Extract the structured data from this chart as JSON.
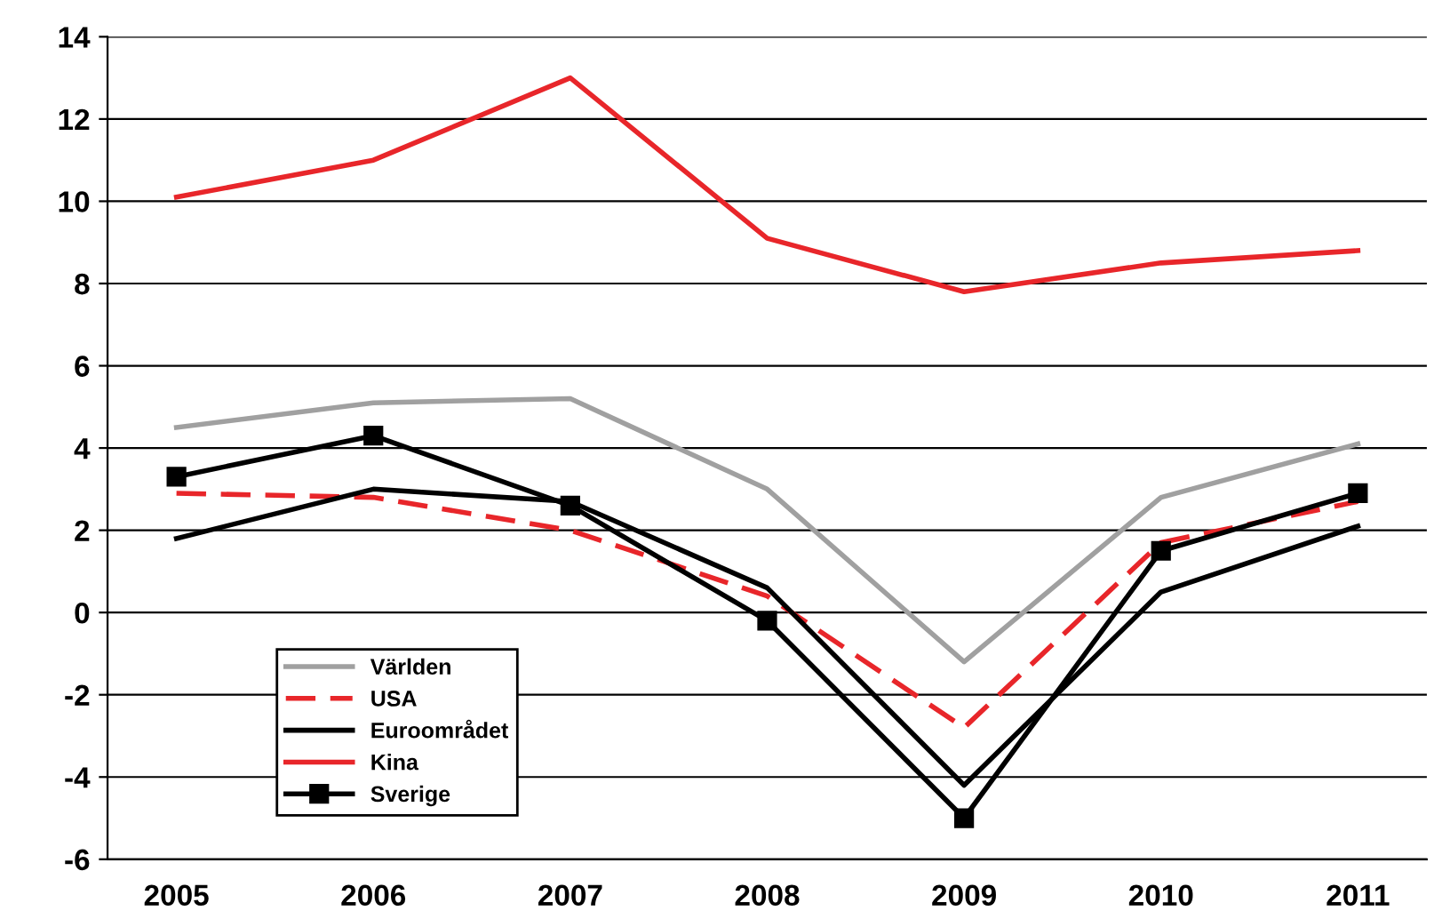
{
  "chart_data": {
    "type": "line",
    "categories": [
      "2005",
      "2006",
      "2007",
      "2008",
      "2009",
      "2010",
      "2011"
    ],
    "series": [
      {
        "name": "Världen",
        "color": "#a0a0a0",
        "line_style": "solid",
        "marker": "none",
        "values": [
          4.5,
          5.1,
          5.2,
          3.0,
          -1.2,
          2.8,
          4.1
        ]
      },
      {
        "name": "USA",
        "color": "#e8262a",
        "line_style": "dashed",
        "marker": "none",
        "values": [
          2.9,
          2.8,
          2.0,
          0.4,
          -2.8,
          1.7,
          2.7
        ]
      },
      {
        "name": "Euroområdet",
        "color": "#000000",
        "line_style": "solid",
        "marker": "none",
        "values": [
          1.8,
          3.0,
          2.7,
          0.6,
          -4.2,
          0.5,
          2.1
        ]
      },
      {
        "name": "Kina",
        "color": "#e8262a",
        "line_style": "solid",
        "marker": "none",
        "values": [
          10.1,
          11.0,
          13.0,
          9.1,
          7.8,
          8.5,
          8.8
        ]
      },
      {
        "name": "Sverige",
        "color": "#000000",
        "line_style": "solid",
        "marker": "square",
        "values": [
          3.3,
          4.3,
          2.6,
          -0.2,
          -5.0,
          1.5,
          2.9
        ]
      }
    ],
    "ylim": [
      -6,
      14
    ],
    "yticks": [
      -6,
      -4,
      -2,
      0,
      2,
      4,
      6,
      8,
      10,
      12,
      14
    ],
    "grid": "y",
    "legend": "lower left"
  }
}
